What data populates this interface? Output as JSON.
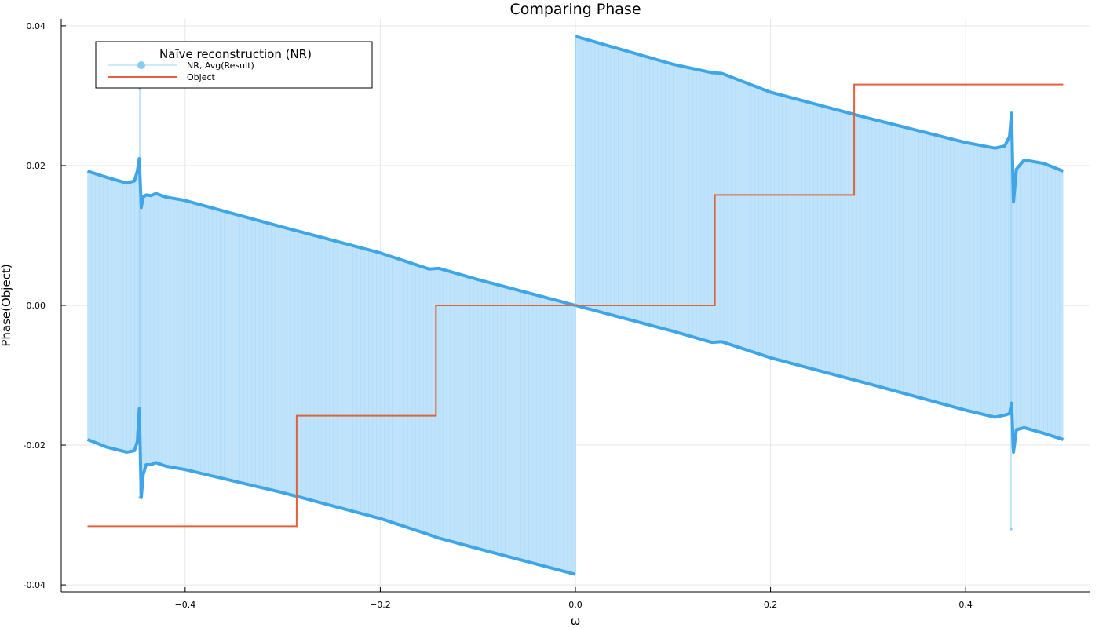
{
  "chart_data": {
    "type": "line",
    "title": "Comparing Phase",
    "xlabel": "ω",
    "ylabel": "Phase(Object)",
    "xlim": [
      -0.527,
      0.527
    ],
    "ylim": [
      -0.041,
      0.041
    ],
    "x_ticks": [
      -0.4,
      -0.2,
      0.0,
      0.2,
      0.4
    ],
    "x_tick_labels": [
      "−0.4",
      "−0.2",
      "0.0",
      "0.2",
      "0.4"
    ],
    "y_ticks": [
      -0.04,
      -0.02,
      0.0,
      0.02,
      0.04
    ],
    "y_tick_labels": [
      "-0.04",
      "-0.02",
      "0.00",
      "0.02",
      "0.04"
    ],
    "grid": true,
    "legend_position": "top-left",
    "legend": {
      "title": "Naïve reconstruction (NR)",
      "entries": [
        "NR, Avg(Result)",
        "Object"
      ]
    },
    "colors": {
      "nr_fill": "#bfe3fb",
      "nr_line": "#3ea6e8",
      "nr_marker": "#8ccbf2",
      "object": "#e0623a"
    },
    "series": [
      {
        "name": "NR, Avg(Result)",
        "kind": "envelope",
        "upper": [
          [
            -0.5,
            0.0192
          ],
          [
            -0.48,
            0.0183
          ],
          [
            -0.46,
            0.0175
          ],
          [
            -0.452,
            0.0178
          ],
          [
            -0.449,
            0.0192
          ],
          [
            -0.447,
            0.021
          ],
          [
            -0.445,
            0.014
          ],
          [
            -0.443,
            0.0155
          ],
          [
            -0.44,
            0.0158
          ],
          [
            -0.435,
            0.0157
          ],
          [
            -0.43,
            0.016
          ],
          [
            -0.42,
            0.0155
          ],
          [
            -0.4,
            0.015
          ],
          [
            -0.3,
            0.0112
          ],
          [
            -0.2,
            0.0075
          ],
          [
            -0.15,
            0.0052
          ],
          [
            -0.14,
            0.0053
          ],
          [
            -0.1,
            0.0037
          ],
          [
            0.0,
            0.0
          ]
        ],
        "lower": [
          [
            -0.5,
            -0.0192
          ],
          [
            -0.48,
            -0.0203
          ],
          [
            -0.46,
            -0.021
          ],
          [
            -0.452,
            -0.0208
          ],
          [
            -0.449,
            -0.0195
          ],
          [
            -0.447,
            -0.0148
          ],
          [
            -0.445,
            -0.0275
          ],
          [
            -0.443,
            -0.0242
          ],
          [
            -0.44,
            -0.0228
          ],
          [
            -0.435,
            -0.0228
          ],
          [
            -0.43,
            -0.0225
          ],
          [
            -0.42,
            -0.023
          ],
          [
            -0.4,
            -0.0235
          ],
          [
            -0.3,
            -0.0268
          ],
          [
            -0.2,
            -0.0305
          ],
          [
            -0.15,
            -0.0328
          ],
          [
            -0.14,
            -0.0333
          ],
          [
            -0.1,
            -0.0348
          ],
          [
            0.0,
            -0.0385
          ]
        ],
        "upper_right": [
          [
            0.0,
            0.0385
          ],
          [
            0.1,
            0.0345
          ],
          [
            0.14,
            0.0333
          ],
          [
            0.15,
            0.0332
          ],
          [
            0.2,
            0.0305
          ],
          [
            0.3,
            0.0268
          ],
          [
            0.4,
            0.0233
          ],
          [
            0.43,
            0.0225
          ],
          [
            0.44,
            0.0228
          ],
          [
            0.445,
            0.0242
          ],
          [
            0.447,
            0.0275
          ],
          [
            0.449,
            0.0148
          ],
          [
            0.452,
            0.0195
          ],
          [
            0.46,
            0.0208
          ],
          [
            0.48,
            0.0203
          ],
          [
            0.5,
            0.0192
          ]
        ],
        "lower_right": [
          [
            0.0,
            0.0
          ],
          [
            0.1,
            -0.0037
          ],
          [
            0.14,
            -0.0053
          ],
          [
            0.15,
            -0.0052
          ],
          [
            0.2,
            -0.0075
          ],
          [
            0.3,
            -0.0112
          ],
          [
            0.4,
            -0.015
          ],
          [
            0.43,
            -0.016
          ],
          [
            0.44,
            -0.0157
          ],
          [
            0.445,
            -0.0155
          ],
          [
            0.447,
            -0.014
          ],
          [
            0.449,
            -0.021
          ],
          [
            0.452,
            -0.0178
          ],
          [
            0.46,
            -0.0175
          ],
          [
            0.48,
            -0.0183
          ],
          [
            0.5,
            -0.0192
          ]
        ],
        "spikes": [
          [
            -0.4465,
            0.031
          ],
          [
            -0.4465,
            -0.0275
          ],
          [
            0.4465,
            0.0275
          ],
          [
            0.4465,
            -0.032
          ]
        ]
      },
      {
        "name": "Object",
        "kind": "step",
        "points": [
          [
            -0.5,
            -0.0316
          ],
          [
            -0.2857,
            -0.0316
          ],
          [
            -0.2857,
            -0.0158
          ],
          [
            -0.1429,
            -0.0158
          ],
          [
            -0.1429,
            0.0
          ],
          [
            0.1429,
            0.0
          ],
          [
            0.1429,
            0.0158
          ],
          [
            0.2857,
            0.0158
          ],
          [
            0.2857,
            0.0316
          ],
          [
            0.5,
            0.0316
          ]
        ]
      }
    ]
  }
}
